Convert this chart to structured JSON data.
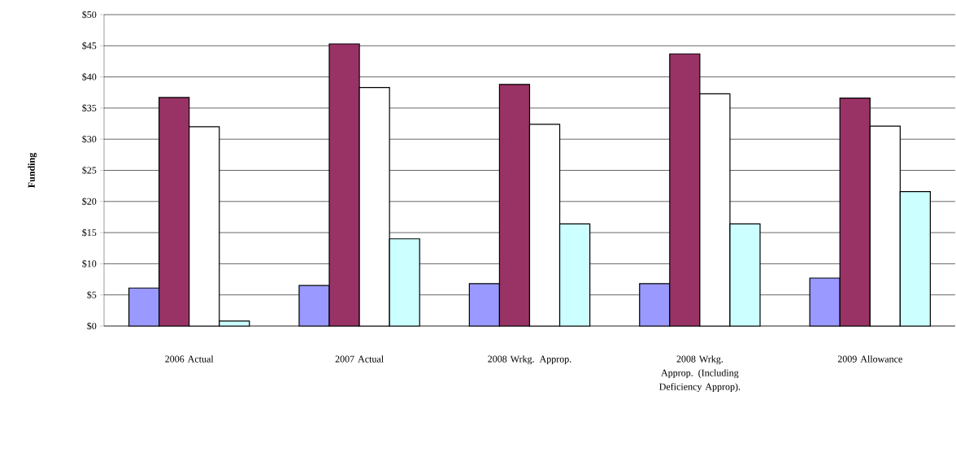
{
  "chart_data": {
    "type": "bar",
    "ylabel": "Funding",
    "categories": [
      "2006 Actual",
      "2007 Actual",
      "2008 Wrkg. Approp.",
      "2008 Wrkg. Approp. (Including Deficiency Approp).",
      "2009 Allowance"
    ],
    "series": [
      {
        "color": "#9999ff",
        "values": [
          6.1,
          6.5,
          6.8,
          6.8,
          7.7
        ]
      },
      {
        "color": "#993366",
        "values": [
          36.7,
          45.3,
          38.8,
          43.7,
          36.6
        ]
      },
      {
        "color": "#ffffff",
        "values": [
          32.0,
          38.3,
          32.4,
          37.3,
          32.1
        ]
      },
      {
        "color": "#ccffff",
        "values": [
          0.8,
          14.0,
          16.4,
          16.4,
          21.6
        ]
      }
    ],
    "ylim": [
      0,
      50
    ],
    "yticks": [
      {
        "value": 0,
        "label": "$0"
      },
      {
        "value": 5,
        "label": "$5"
      },
      {
        "value": 10,
        "label": "$10"
      },
      {
        "value": 15,
        "label": "$15"
      },
      {
        "value": 20,
        "label": "$20"
      },
      {
        "value": 25,
        "label": "$25"
      },
      {
        "value": 30,
        "label": "$30"
      },
      {
        "value": 35,
        "label": "$35"
      },
      {
        "value": 40,
        "label": "$40"
      },
      {
        "value": 45,
        "label": "$45"
      },
      {
        "value": 50,
        "label": "$50"
      }
    ],
    "grid": "y"
  }
}
